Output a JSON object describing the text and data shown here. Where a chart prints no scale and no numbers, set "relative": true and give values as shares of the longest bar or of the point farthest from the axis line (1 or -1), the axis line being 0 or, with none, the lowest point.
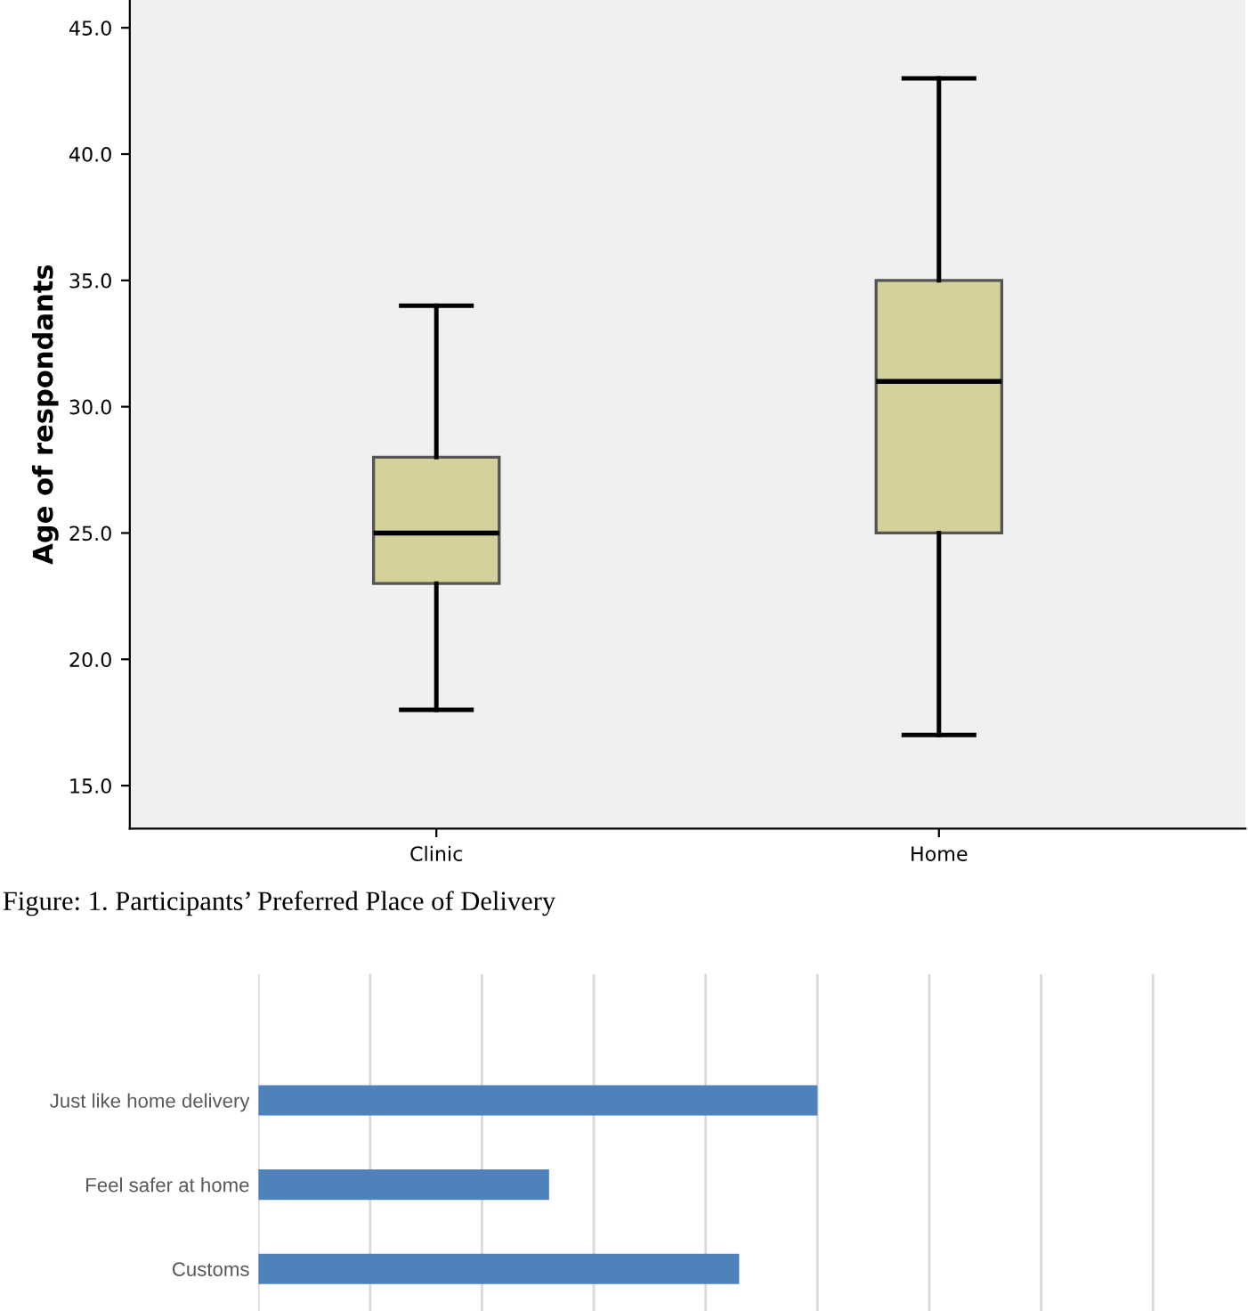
{
  "chart_data": [
    {
      "type": "box",
      "ylabel": "Age of respondants",
      "categories": [
        "Clinic",
        "Home"
      ],
      "color": "#d4d19a",
      "boxes": [
        {
          "low": 18,
          "q1": 23,
          "median": 25,
          "q3": 28,
          "high": 34
        },
        {
          "low": 17,
          "q1": 25,
          "median": 31,
          "q3": 35,
          "high": 43
        }
      ],
      "ylim": [
        13.3,
        46.1
      ],
      "yticks": [
        {
          "value": 15,
          "label": "15.0"
        },
        {
          "value": 20,
          "label": "20.0"
        },
        {
          "value": 25,
          "label": "25.0"
        },
        {
          "value": 30,
          "label": "30.0"
        },
        {
          "value": 35,
          "label": "35.0"
        },
        {
          "value": 40,
          "label": "40.0"
        },
        {
          "value": 45,
          "label": "45.0"
        }
      ],
      "grid": false
    },
    {
      "type": "bar",
      "orientation": "horizontal",
      "relative": true,
      "grid": "x",
      "color": "#4f81bd",
      "categories": [
        "Just like home delivery",
        "Feel safer at home",
        "Customs"
      ],
      "values": [
        1,
        0.52,
        0.86
      ],
      "annotations": [
        "Figure: 1. Participants’ Preferred Place of Delivery"
      ]
    }
  ]
}
